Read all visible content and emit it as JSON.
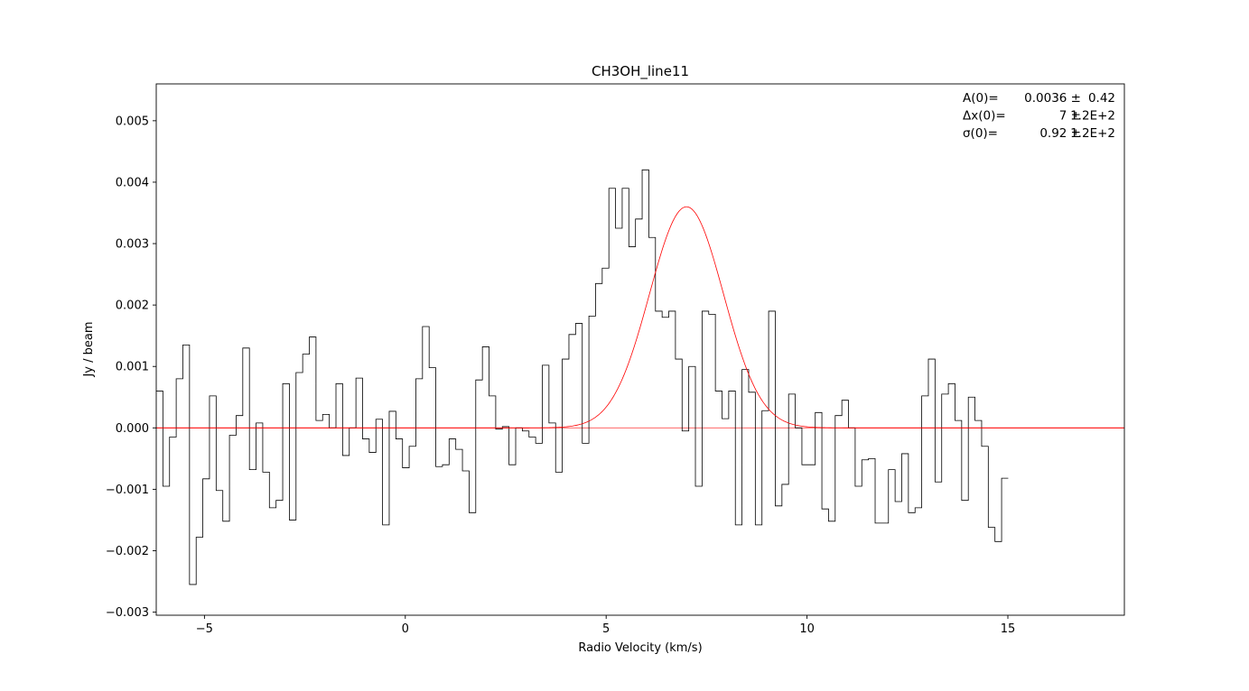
{
  "chart_data": {
    "type": "line",
    "title": "CH3OH_line11",
    "xlabel": "Radio Velocity (km/s)",
    "ylabel": "Jy / beam",
    "xlim": [
      -6.2,
      17.9
    ],
    "ylim": [
      -0.00305,
      0.0056
    ],
    "grid": false,
    "x_ticks": [
      -5,
      0,
      5,
      10,
      15
    ],
    "x_tick_labels": [
      "−5",
      "0",
      "5",
      "10",
      "15"
    ],
    "y_ticks": [
      -0.003,
      -0.002,
      -0.001,
      0.0,
      0.001,
      0.002,
      0.003,
      0.004,
      0.005
    ],
    "y_tick_labels": [
      "−0.003",
      "−0.002",
      "−0.001",
      "0.000",
      "0.001",
      "0.002",
      "0.003",
      "0.004",
      "0.005"
    ],
    "colors": {
      "spectrum": "#000000",
      "fit": "#ff0000",
      "baseline": "#ff0000"
    },
    "spectrum": {
      "x0": -6.2,
      "dx": 0.1657,
      "values": [
        0.0006,
        -0.00095,
        -0.00015,
        0.0008,
        0.00135,
        -0.00255,
        -0.00178,
        -0.00083,
        0.00052,
        -0.00102,
        -0.00152,
        -0.00012,
        0.0002,
        0.0013,
        -0.00068,
        8e-05,
        -0.00072,
        -0.0013,
        -0.00118,
        0.00072,
        -0.0015,
        0.0009,
        0.0012,
        0.00148,
        0.00012,
        0.00022,
        0.0,
        0.00072,
        -0.00045,
        0.0,
        0.00081,
        -0.00018,
        -0.0004,
        0.00014,
        -0.00158,
        0.00027,
        -0.00018,
        -0.00065,
        -0.0003,
        0.0008,
        0.00165,
        0.00098,
        -0.00063,
        -0.0006,
        -0.00018,
        -0.00035,
        -0.0007,
        -0.00138,
        0.00078,
        0.00132,
        0.00052,
        -2e-05,
        2e-05,
        -0.0006,
        0.0,
        -5e-05,
        -0.00015,
        -0.00025,
        0.00102,
        8e-05,
        -0.00072,
        0.00112,
        0.00152,
        0.0017,
        -0.00025,
        0.00182,
        0.00235,
        0.0026,
        0.0039,
        0.00325,
        0.0039,
        0.00295,
        0.0034,
        0.0042,
        0.0031,
        0.0019,
        0.0018,
        0.0019,
        0.00112,
        -5e-05,
        0.001,
        -0.00095,
        0.0019,
        0.00185,
        0.0006,
        0.00015,
        0.0006,
        -0.00158,
        0.00095,
        0.00058,
        -0.00158,
        0.00028,
        0.0019,
        -0.00127,
        -0.00092,
        0.00055,
        0.0,
        -0.0006,
        -0.0006,
        0.00025,
        -0.00132,
        -0.00152,
        0.0002,
        0.00045,
        0.0,
        -0.00095,
        -0.00052,
        -0.0005,
        -0.00155,
        -0.00155,
        -0.00068,
        -0.0012,
        -0.00042,
        -0.00138,
        -0.0013,
        0.00052,
        0.00112,
        -0.00088,
        0.00055,
        0.00072,
        0.00012,
        -0.00118,
        0.0005,
        0.00012,
        -0.0003,
        -0.00162,
        -0.00185,
        -0.00082
      ]
    },
    "fit": {
      "amplitude": 0.0036,
      "center": 7.0,
      "sigma": 0.92
    },
    "annotations": [
      {
        "label": "A(0)=",
        "value": "0.0036 ±",
        "err": "0.42"
      },
      {
        "label": "Δx(0)=",
        "value": "7 ±",
        "err": "1.2E+2"
      },
      {
        "label": "σ(0)=",
        "value": "0.92 ±",
        "err": "1.2E+2"
      }
    ]
  }
}
